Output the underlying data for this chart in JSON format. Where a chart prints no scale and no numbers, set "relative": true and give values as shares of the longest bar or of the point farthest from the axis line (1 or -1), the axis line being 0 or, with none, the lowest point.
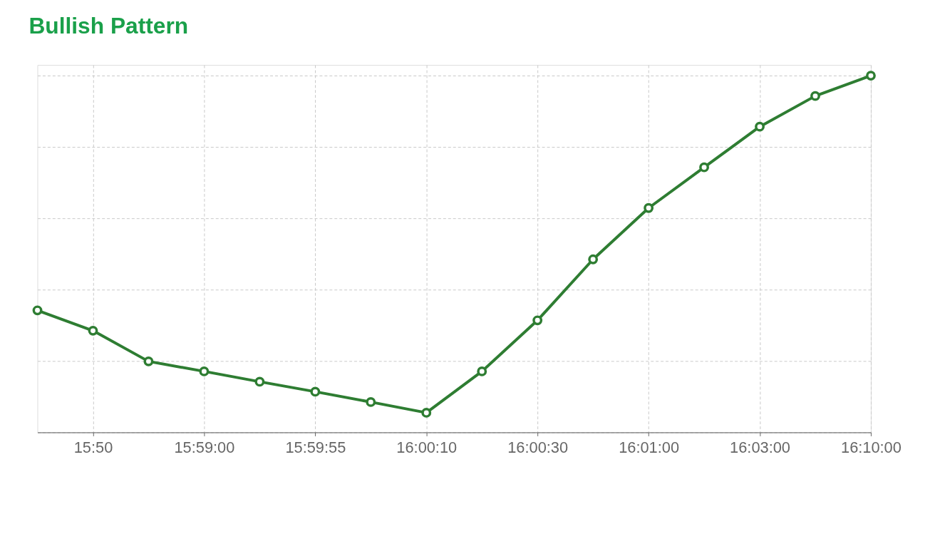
{
  "chart_data": {
    "type": "line",
    "title": "Bullish Pattern",
    "relative": true,
    "categories": [
      null,
      "15:50",
      null,
      "15:59:00",
      null,
      "15:59:55",
      null,
      "16:00:10",
      null,
      "16:00:30",
      null,
      "16:01:00",
      null,
      "16:03:00",
      null,
      "16:10:00"
    ],
    "series": [
      {
        "color": "#2e7d32",
        "values": [
          0.342,
          0.285,
          0.199,
          0.171,
          0.142,
          0.114,
          0.085,
          0.055,
          0.171,
          0.314,
          0.485,
          0.629,
          0.743,
          0.857,
          0.943,
          1.0
        ]
      }
    ],
    "grid": true,
    "marker": "circle",
    "line_style": "solid"
  }
}
